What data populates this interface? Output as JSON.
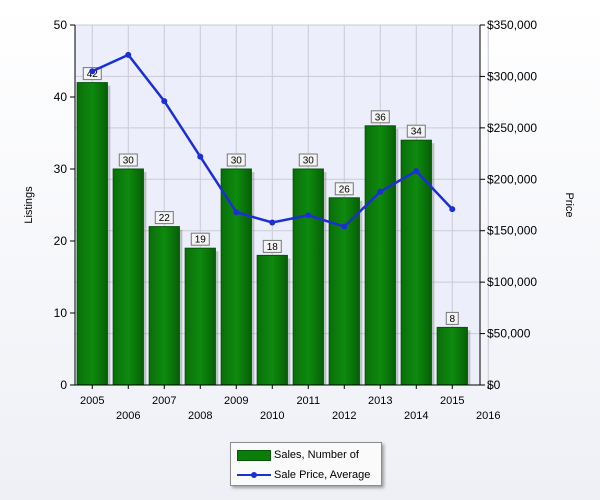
{
  "chart_data": {
    "type": "bar",
    "categories": [
      "2005",
      "2006",
      "2007",
      "2008",
      "2009",
      "2010",
      "2011",
      "2012",
      "2013",
      "2014",
      "2015"
    ],
    "x_tick_labels": [
      "2005",
      "2006",
      "2007",
      "2008",
      "2009",
      "2010",
      "2011",
      "2012",
      "2013",
      "2014",
      "2015",
      "2016"
    ],
    "series": [
      {
        "name": "Sales, Number of",
        "type": "bar",
        "axis": "left",
        "color": "#0b7d0b",
        "values": [
          42,
          30,
          22,
          19,
          30,
          18,
          30,
          26,
          36,
          34,
          8
        ],
        "data_labels": [
          "42",
          "30",
          "22",
          "19",
          "30",
          "18",
          "30",
          "26",
          "36",
          "34",
          "8"
        ]
      },
      {
        "name": "Sale Price, Average",
        "type": "line",
        "axis": "right",
        "color": "#1c2fd6",
        "values": [
          305000,
          321000,
          276000,
          222000,
          168000,
          158000,
          165000,
          154000,
          188000,
          208000,
          171000
        ]
      }
    ],
    "ylabel": "Listings",
    "y2label": "Price",
    "ylim": [
      0,
      50
    ],
    "y_ticks": [
      "0",
      "10",
      "20",
      "30",
      "40",
      "50"
    ],
    "y2lim": [
      0,
      350000
    ],
    "y2_ticks": [
      "$0",
      "$50,000",
      "$100,000",
      "$150,000",
      "$200,000",
      "$250,000",
      "$300,000",
      "$350,000"
    ],
    "grid": true,
    "legend_position": "bottom-center",
    "plot_background": "#eceefb"
  }
}
